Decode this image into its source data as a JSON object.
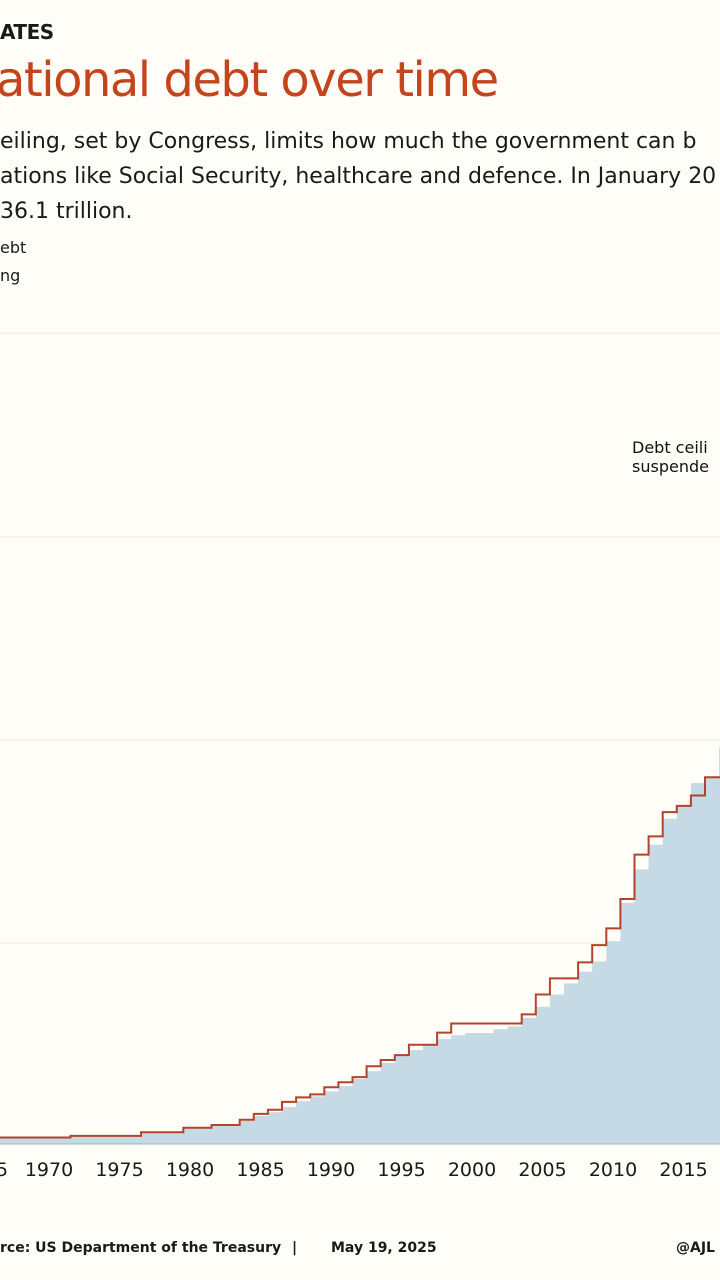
{
  "header": {
    "kicker": "ATES",
    "title": "ational debt over time",
    "subtitle_lines": [
      "eiling, set by Congress, limits how much the government can b",
      "ations like Social Security, healthcare and defence. In January 20",
      "36.1 trillion."
    ]
  },
  "legend": {
    "items": [
      "ebt",
      "ng"
    ]
  },
  "colors": {
    "title": "#c4441c",
    "debt_fill": "#c5dae4",
    "ceiling_line": "#b5422a",
    "gridline": "#f1ebd2",
    "background": "#fefdf7"
  },
  "footer": {
    "source": "rce: US Department of the Treasury",
    "separator": "|",
    "date": "May 19, 2025",
    "handle": "@AJL"
  },
  "chart_data": {
    "type": "area",
    "x_tick_labels": [
      "5",
      "1970",
      "1975",
      "1980",
      "1985",
      "1990",
      "1995",
      "2000",
      "2005",
      "2010",
      "2015"
    ],
    "annotations": [
      "Debt ceili",
      "suspende"
    ],
    "grid": true,
    "series": [
      {
        "x": [
          1965,
          1970,
          1975,
          1978,
          1980,
          1982,
          1983,
          1984,
          1985,
          1986,
          1987,
          1988,
          1989,
          1990,
          1991,
          1992,
          1993,
          1994,
          1995,
          1996,
          1997,
          1998,
          2000,
          2001,
          2002,
          2003,
          2004,
          2005,
          2006,
          2007,
          2008,
          2009,
          2010,
          2011,
          2012,
          2013,
          2014,
          2015,
          2016,
          2017,
          2018
        ],
        "y": [
          0.3,
          0.38,
          0.54,
          0.77,
          0.91,
          1.14,
          1.38,
          1.57,
          1.82,
          2.12,
          2.35,
          2.6,
          2.86,
          3.21,
          3.6,
          4.0,
          4.35,
          4.64,
          4.92,
          5.18,
          5.37,
          5.48,
          5.67,
          5.81,
          6.23,
          6.78,
          7.38,
          7.93,
          8.51,
          9.01,
          10.02,
          11.91,
          13.56,
          14.78,
          16.06,
          16.74,
          17.82,
          18.15,
          19.57,
          20.24,
          21.5
        ]
      },
      {
        "x": [
          1965,
          1970,
          1975,
          1978,
          1980,
          1982,
          1983,
          1984,
          1985,
          1986,
          1987,
          1988,
          1989,
          1990,
          1991,
          1992,
          1993,
          1994,
          1996,
          1997,
          2000,
          2001,
          2002,
          2003,
          2004,
          2005,
          2006,
          2007,
          2008,
          2009,
          2010,
          2011,
          2012,
          2013,
          2014,
          2015,
          2017
        ],
        "y": [
          0.32,
          0.4,
          0.58,
          0.8,
          0.94,
          1.2,
          1.49,
          1.69,
          2.08,
          2.3,
          2.45,
          2.8,
          3.05,
          3.3,
          3.84,
          4.15,
          4.39,
          4.9,
          5.5,
          5.95,
          5.95,
          5.95,
          6.4,
          7.38,
          8.18,
          8.18,
          8.97,
          9.82,
          10.65,
          12.1,
          14.29,
          15.19,
          16.39,
          16.7,
          17.21,
          18.11,
          20.5
        ]
      }
    ]
  }
}
